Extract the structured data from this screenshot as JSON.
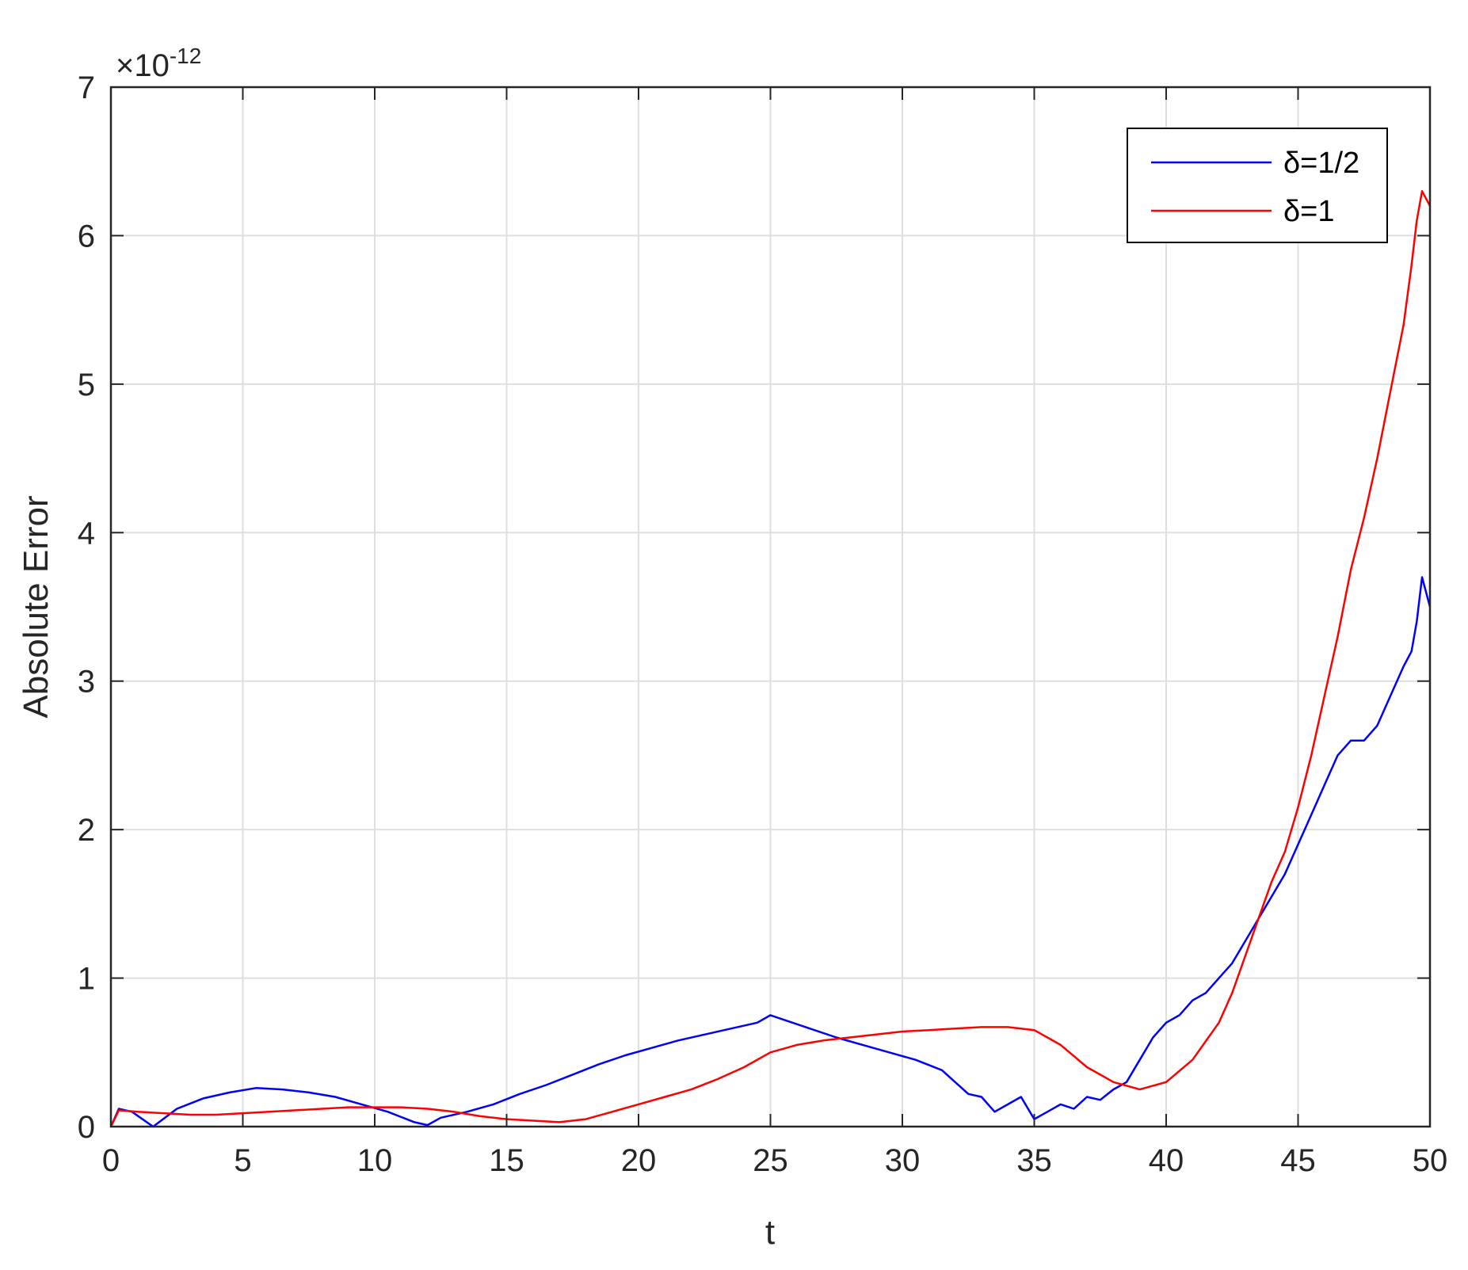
{
  "chart_data": {
    "type": "line",
    "title": "",
    "xlabel": "t",
    "ylabel": "Absolute Error",
    "y_exponent_label": "×10",
    "y_exponent_power": "-12",
    "xlim": [
      0,
      50
    ],
    "ylim": [
      0,
      7
    ],
    "xticks": [
      0,
      5,
      10,
      15,
      20,
      25,
      30,
      35,
      40,
      45,
      50
    ],
    "yticks": [
      0,
      1,
      2,
      3,
      4,
      5,
      6,
      7
    ],
    "xtick_labels": [
      "0",
      "5",
      "10",
      "15",
      "20",
      "25",
      "30",
      "35",
      "40",
      "45",
      "50"
    ],
    "ytick_labels": [
      "0",
      "1",
      "2",
      "3",
      "4",
      "5",
      "6",
      "7"
    ],
    "grid": true,
    "legend_position": "top-right",
    "series": [
      {
        "name": "δ=1/2",
        "color": "#0000ff",
        "x": [
          0,
          0.3,
          0.8,
          1.6,
          2.5,
          3.5,
          4.5,
          5.5,
          6.5,
          7.5,
          8.5,
          9.5,
          10.5,
          11.5,
          12,
          12.5,
          13.5,
          14.5,
          15.5,
          16.5,
          17.5,
          18.5,
          19.5,
          20.5,
          21.5,
          22.5,
          23.5,
          24.5,
          25,
          25.5,
          26.5,
          27.5,
          28.5,
          29.5,
          30.5,
          31.5,
          32,
          32.5,
          33,
          33.5,
          34,
          34.5,
          35,
          35.5,
          36,
          36.5,
          37,
          37.5,
          38,
          38.5,
          39,
          39.5,
          40,
          40.5,
          41,
          41.5,
          42,
          42.5,
          43,
          43.5,
          44,
          44.5,
          45,
          45.5,
          46,
          46.5,
          47,
          47.5,
          48,
          48.5,
          49,
          49.3,
          49.5,
          49.7,
          50
        ],
        "y": [
          0,
          0.12,
          0.1,
          0,
          0.12,
          0.19,
          0.23,
          0.26,
          0.25,
          0.23,
          0.2,
          0.15,
          0.1,
          0.03,
          0.01,
          0.06,
          0.1,
          0.15,
          0.22,
          0.28,
          0.35,
          0.42,
          0.48,
          0.53,
          0.58,
          0.62,
          0.66,
          0.7,
          0.75,
          0.72,
          0.66,
          0.6,
          0.55,
          0.5,
          0.45,
          0.38,
          0.3,
          0.22,
          0.2,
          0.1,
          0.15,
          0.2,
          0.05,
          0.1,
          0.15,
          0.12,
          0.2,
          0.18,
          0.25,
          0.3,
          0.45,
          0.6,
          0.7,
          0.75,
          0.85,
          0.9,
          1.0,
          1.1,
          1.25,
          1.4,
          1.55,
          1.7,
          1.9,
          2.1,
          2.3,
          2.5,
          2.6,
          2.6,
          2.7,
          2.9,
          3.1,
          3.2,
          3.4,
          3.7,
          3.5
        ]
      },
      {
        "name": "δ=1",
        "color": "#ff0000",
        "x": [
          0,
          0.3,
          1,
          2,
          3,
          4,
          5,
          6,
          7,
          8,
          9,
          10,
          11,
          12,
          13,
          14,
          15,
          16,
          17,
          18,
          19,
          20,
          21,
          22,
          23,
          24,
          25,
          26,
          27,
          28,
          29,
          30,
          31,
          32,
          33,
          34,
          35,
          36,
          37,
          38,
          39,
          40,
          41,
          42,
          42.5,
          43,
          43.5,
          44,
          44.5,
          45,
          45.5,
          46,
          46.5,
          47,
          47.5,
          48,
          48.5,
          49,
          49.3,
          49.5,
          49.7,
          50
        ],
        "y": [
          0,
          0.11,
          0.1,
          0.09,
          0.08,
          0.08,
          0.09,
          0.1,
          0.11,
          0.12,
          0.13,
          0.13,
          0.13,
          0.12,
          0.1,
          0.07,
          0.05,
          0.04,
          0.03,
          0.05,
          0.1,
          0.15,
          0.2,
          0.25,
          0.32,
          0.4,
          0.5,
          0.55,
          0.58,
          0.6,
          0.62,
          0.64,
          0.65,
          0.66,
          0.67,
          0.67,
          0.65,
          0.55,
          0.4,
          0.3,
          0.25,
          0.3,
          0.45,
          0.7,
          0.9,
          1.15,
          1.4,
          1.65,
          1.85,
          2.15,
          2.5,
          2.9,
          3.3,
          3.75,
          4.1,
          4.5,
          4.95,
          5.4,
          5.8,
          6.1,
          6.3,
          6.2
        ]
      }
    ]
  }
}
